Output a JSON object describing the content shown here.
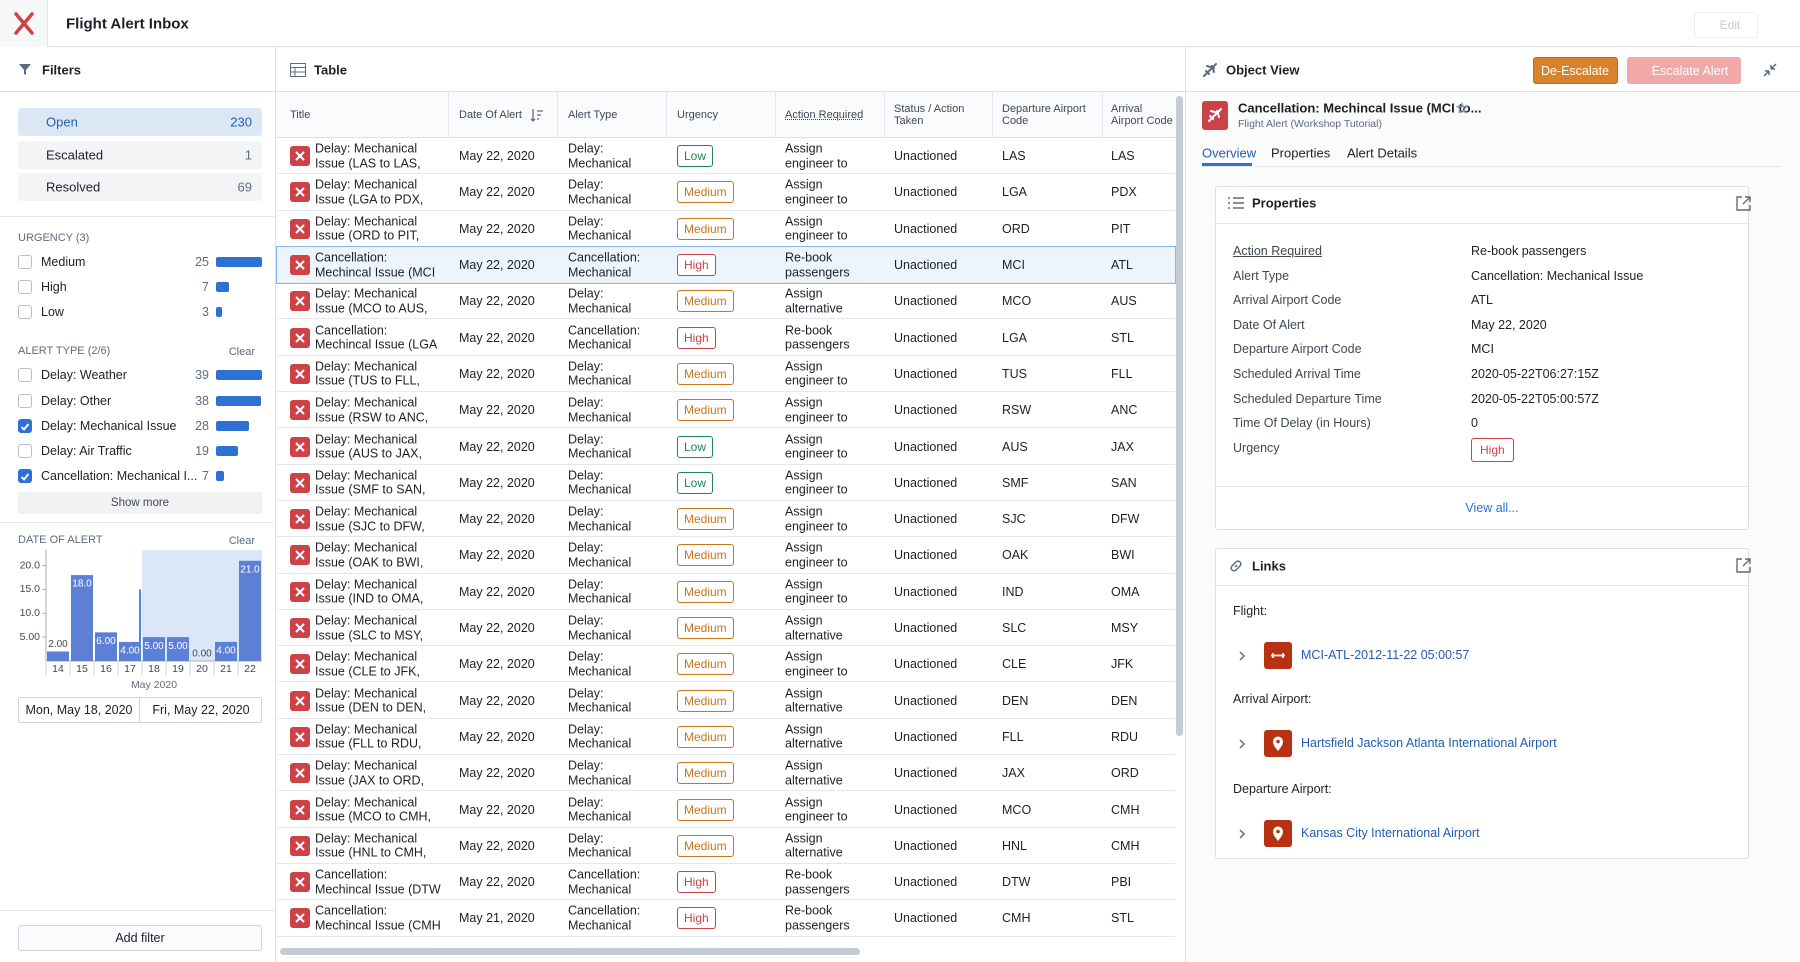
{
  "header": {
    "title": "Flight Alert Inbox",
    "edit": "Edit"
  },
  "filters": {
    "title": "Filters",
    "status": [
      {
        "label": "Open",
        "count": 230,
        "active": true
      },
      {
        "label": "Escalated",
        "count": 1,
        "active": false
      },
      {
        "label": "Resolved",
        "count": 69,
        "active": false
      }
    ],
    "urgency": {
      "heading": "URGENCY (3)",
      "items": [
        {
          "label": "Medium",
          "count": 25,
          "checked": false
        },
        {
          "label": "High",
          "count": 7,
          "checked": false
        },
        {
          "label": "Low",
          "count": 3,
          "checked": false
        }
      ]
    },
    "alert_type": {
      "heading": "ALERT TYPE (2/6)",
      "clear": "Clear",
      "items": [
        {
          "label": "Delay: Weather",
          "count": 39,
          "checked": false
        },
        {
          "label": "Delay: Other",
          "count": 38,
          "checked": false
        },
        {
          "label": "Delay: Mechanical Issue",
          "count": 28,
          "checked": true
        },
        {
          "label": "Delay: Air Traffic",
          "count": 19,
          "checked": false
        },
        {
          "label": "Cancellation: Mechanical I...",
          "count": 7,
          "checked": true
        }
      ],
      "show_more": "Show more"
    },
    "date": {
      "heading": "DATE OF ALERT",
      "clear": "Clear",
      "start": "Mon, May 18, 2020",
      "end": "Fri, May 22, 2020"
    },
    "add_filter": "Add filter"
  },
  "chart_data": {
    "type": "bar",
    "x_label": "May 2020",
    "categories": [
      "14",
      "15",
      "16",
      "17",
      "18",
      "19",
      "20",
      "21",
      "22"
    ],
    "values": [
      2,
      18,
      6,
      4,
      5,
      5,
      0,
      4,
      21
    ],
    "value_labels": [
      "2.00",
      "18.0",
      "6.00",
      "4.00",
      "5.00",
      "5.00",
      "0.00",
      "4.00",
      "21.0"
    ],
    "color": "#5b80d6",
    "ylim": [
      0,
      22
    ],
    "yticks": [
      {
        "value": 5,
        "label": "5.00"
      },
      {
        "value": 10,
        "label": "10.0"
      },
      {
        "value": 15,
        "label": "15.0"
      },
      {
        "value": 20,
        "label": "20.0"
      }
    ]
  },
  "table": {
    "title": "Table",
    "columns": [
      "Title",
      "Date Of Alert",
      "Alert Type",
      "Urgency",
      "Action Required",
      "Status / Action Taken",
      "Departure Airport Code",
      "Arrival Airport Code"
    ],
    "selected_row": 3,
    "urgency_colors": {
      "Low": "#238551",
      "Medium": "#c87619",
      "High": "#cd4246"
    },
    "rows": [
      [
        "Delay: Mechanical Issue (LAS to LAS,",
        "May 22, 2020",
        "Delay: Mechanical",
        "Low",
        "Assign engineer to",
        "Unactioned",
        "LAS",
        "LAS"
      ],
      [
        "Delay: Mechanical Issue (LGA to PDX,",
        "May 22, 2020",
        "Delay: Mechanical",
        "Medium",
        "Assign engineer to",
        "Unactioned",
        "LGA",
        "PDX"
      ],
      [
        "Delay: Mechanical Issue (ORD to PIT,",
        "May 22, 2020",
        "Delay: Mechanical",
        "Medium",
        "Assign engineer to",
        "Unactioned",
        "ORD",
        "PIT"
      ],
      [
        "Cancellation: Mechincal Issue (MCI",
        "May 22, 2020",
        "Cancellation: Mechanical",
        "High",
        "Re-book passengers",
        "Unactioned",
        "MCI",
        "ATL"
      ],
      [
        "Delay: Mechanical Issue (MCO to AUS,",
        "May 22, 2020",
        "Delay: Mechanical",
        "Medium",
        "Assign alternative",
        "Unactioned",
        "MCO",
        "AUS"
      ],
      [
        "Cancellation: Mechincal Issue (LGA",
        "May 22, 2020",
        "Cancellation: Mechanical",
        "High",
        "Re-book passengers",
        "Unactioned",
        "LGA",
        "STL"
      ],
      [
        "Delay: Mechanical Issue (TUS to FLL,",
        "May 22, 2020",
        "Delay: Mechanical",
        "Medium",
        "Assign engineer to",
        "Unactioned",
        "TUS",
        "FLL"
      ],
      [
        "Delay: Mechanical Issue (RSW to ANC,",
        "May 22, 2020",
        "Delay: Mechanical",
        "Medium",
        "Assign engineer to",
        "Unactioned",
        "RSW",
        "ANC"
      ],
      [
        "Delay: Mechanical Issue (AUS to JAX,",
        "May 22, 2020",
        "Delay: Mechanical",
        "Low",
        "Assign engineer to",
        "Unactioned",
        "AUS",
        "JAX"
      ],
      [
        "Delay: Mechanical Issue (SMF to SAN,",
        "May 22, 2020",
        "Delay: Mechanical",
        "Low",
        "Assign engineer to",
        "Unactioned",
        "SMF",
        "SAN"
      ],
      [
        "Delay: Mechanical Issue (SJC to DFW,",
        "May 22, 2020",
        "Delay: Mechanical",
        "Medium",
        "Assign engineer to",
        "Unactioned",
        "SJC",
        "DFW"
      ],
      [
        "Delay: Mechanical Issue (OAK to BWI,",
        "May 22, 2020",
        "Delay: Mechanical",
        "Medium",
        "Assign engineer to",
        "Unactioned",
        "OAK",
        "BWI"
      ],
      [
        "Delay: Mechanical Issue (IND to OMA,",
        "May 22, 2020",
        "Delay: Mechanical",
        "Medium",
        "Assign engineer to",
        "Unactioned",
        "IND",
        "OMA"
      ],
      [
        "Delay: Mechanical Issue (SLC to MSY,",
        "May 22, 2020",
        "Delay: Mechanical",
        "Medium",
        "Assign alternative",
        "Unactioned",
        "SLC",
        "MSY"
      ],
      [
        "Delay: Mechanical Issue (CLE to JFK,",
        "May 22, 2020",
        "Delay: Mechanical",
        "Medium",
        "Assign engineer to",
        "Unactioned",
        "CLE",
        "JFK"
      ],
      [
        "Delay: Mechanical Issue (DEN to DEN,",
        "May 22, 2020",
        "Delay: Mechanical",
        "Medium",
        "Assign alternative",
        "Unactioned",
        "DEN",
        "DEN"
      ],
      [
        "Delay: Mechanical Issue (FLL to RDU,",
        "May 22, 2020",
        "Delay: Mechanical",
        "Medium",
        "Assign alternative",
        "Unactioned",
        "FLL",
        "RDU"
      ],
      [
        "Delay: Mechanical Issue (JAX to ORD,",
        "May 22, 2020",
        "Delay: Mechanical",
        "Medium",
        "Assign alternative",
        "Unactioned",
        "JAX",
        "ORD"
      ],
      [
        "Delay: Mechanical Issue (MCO to CMH,",
        "May 22, 2020",
        "Delay: Mechanical",
        "Medium",
        "Assign engineer to",
        "Unactioned",
        "MCO",
        "CMH"
      ],
      [
        "Delay: Mechanical Issue (HNL to CMH,",
        "May 22, 2020",
        "Delay: Mechanical",
        "Medium",
        "Assign alternative",
        "Unactioned",
        "HNL",
        "CMH"
      ],
      [
        "Cancellation: Mechincal Issue (DTW",
        "May 22, 2020",
        "Cancellation: Mechanical",
        "High",
        "Re-book passengers",
        "Unactioned",
        "DTW",
        "PBI"
      ],
      [
        "Cancellation: Mechincal Issue (CMH",
        "May 21, 2020",
        "Cancellation: Mechanical",
        "High",
        "Re-book passengers",
        "Unactioned",
        "CMH",
        "STL"
      ]
    ]
  },
  "object_view": {
    "title": "Object View",
    "de_escalate": "De-Escalate",
    "escalate": "Escalate Alert",
    "object_title": "Cancellation: Mechincal Issue (MCI to...",
    "object_subtitle": "Flight Alert (Workshop Tutorial)",
    "tabs": [
      "Overview",
      "Properties",
      "Alert Details"
    ],
    "properties": {
      "title": "Properties",
      "rows": [
        {
          "label": "Action Required",
          "value": "Re-book passengers"
        },
        {
          "label": "Alert Type",
          "value": "Cancellation: Mechanical Issue"
        },
        {
          "label": "Arrival Airport Code",
          "value": "ATL"
        },
        {
          "label": "Date Of Alert",
          "value": "May 22, 2020"
        },
        {
          "label": "Departure Airport Code",
          "value": "MCI"
        },
        {
          "label": "Scheduled Arrival Time",
          "value": "2020-05-22T06:27:15Z"
        },
        {
          "label": "Scheduled Departure Time",
          "value": "2020-05-22T05:00:57Z"
        },
        {
          "label": "Time Of Delay (in Hours)",
          "value": 0
        },
        {
          "label": "Urgency",
          "value": "High",
          "badge": true
        }
      ],
      "view_all": "View all..."
    },
    "links": {
      "title": "Links",
      "groups": [
        {
          "label": "Flight:",
          "link": "MCI-ATL-2012-11-22 05:00:57"
        },
        {
          "label": "Arrival Airport:",
          "link": "Hartsfield Jackson Atlanta International Airport"
        },
        {
          "label": "Departure Airport:",
          "link": "Kansas City International Airport"
        }
      ]
    }
  }
}
